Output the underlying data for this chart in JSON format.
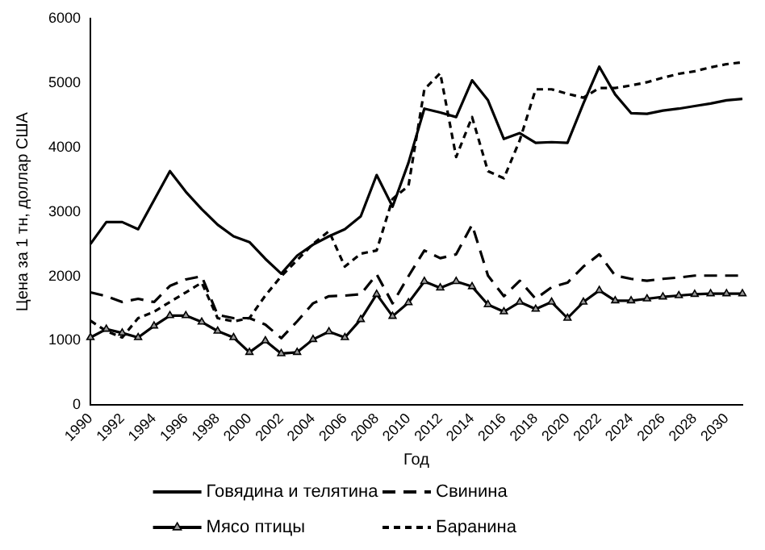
{
  "chart_data": {
    "type": "line",
    "xlabel": "Год",
    "ylabel": "Цена за 1 тн, доллар США",
    "categories": [
      "1990",
      null,
      "1992",
      null,
      "1994",
      null,
      "1996",
      null,
      "1998",
      null,
      "2000",
      null,
      "2002",
      null,
      "2004",
      null,
      "2006",
      null,
      "2008",
      null,
      "2010",
      null,
      "2012",
      null,
      "2014",
      null,
      "2016",
      null,
      "2018",
      null,
      "2020",
      null,
      "2022",
      null,
      "2024",
      null,
      "2026",
      null,
      "2028",
      null,
      "2030",
      null
    ],
    "ylim": [
      0,
      6000
    ],
    "yticks": [
      0,
      1000,
      2000,
      3000,
      4000,
      5000,
      6000
    ],
    "grid": false,
    "legend": "bottom",
    "series": [
      {
        "name": "Говядина и телятина",
        "color": "#000000",
        "line_style": "solid",
        "marker": "none",
        "values": [
          2500,
          2840,
          2840,
          2730,
          3180,
          3630,
          3310,
          3040,
          2800,
          2620,
          2530,
          2270,
          2040,
          2320,
          2490,
          2620,
          2730,
          2930,
          3570,
          3080,
          3760,
          4600,
          4540,
          4470,
          5040,
          4730,
          4130,
          4220,
          4070,
          4080,
          4070,
          4680,
          5250,
          4820,
          4530,
          4520,
          4570,
          4600,
          4640,
          4680,
          4730,
          4750
        ]
      },
      {
        "name": "Свинина",
        "color": "#000000",
        "line_style": "dashed",
        "marker": "none",
        "values": [
          1750,
          1690,
          1600,
          1650,
          1600,
          1850,
          1950,
          2000,
          1400,
          1350,
          1350,
          1250,
          1040,
          1300,
          1580,
          1690,
          1700,
          1720,
          2030,
          1580,
          2000,
          2400,
          2280,
          2340,
          2800,
          2010,
          1690,
          1930,
          1650,
          1830,
          1900,
          2150,
          2340,
          2010,
          1960,
          1930,
          1960,
          1980,
          2010,
          2010,
          2010,
          2010
        ]
      },
      {
        "name": "Мясо птицы",
        "color": "#000000",
        "line_style": "solid",
        "marker": "triangle",
        "values": [
          1050,
          1180,
          1120,
          1050,
          1230,
          1390,
          1390,
          1290,
          1150,
          1050,
          820,
          1000,
          800,
          820,
          1020,
          1140,
          1050,
          1330,
          1720,
          1380,
          1590,
          1920,
          1820,
          1920,
          1840,
          1560,
          1450,
          1600,
          1490,
          1600,
          1350,
          1600,
          1780,
          1620,
          1620,
          1650,
          1680,
          1700,
          1720,
          1730,
          1730,
          1730
        ]
      },
      {
        "name": "Баранина",
        "color": "#000000",
        "line_style": "dotted",
        "marker": "none",
        "values": [
          1310,
          1150,
          1050,
          1350,
          1450,
          1600,
          1750,
          1900,
          1350,
          1300,
          1350,
          1700,
          2000,
          2250,
          2500,
          2700,
          2150,
          2350,
          2400,
          3200,
          3400,
          4900,
          5150,
          3850,
          4470,
          3630,
          3520,
          4110,
          4900,
          4900,
          4830,
          4770,
          4920,
          4920,
          4960,
          5010,
          5080,
          5140,
          5180,
          5240,
          5290,
          5320
        ]
      }
    ]
  }
}
